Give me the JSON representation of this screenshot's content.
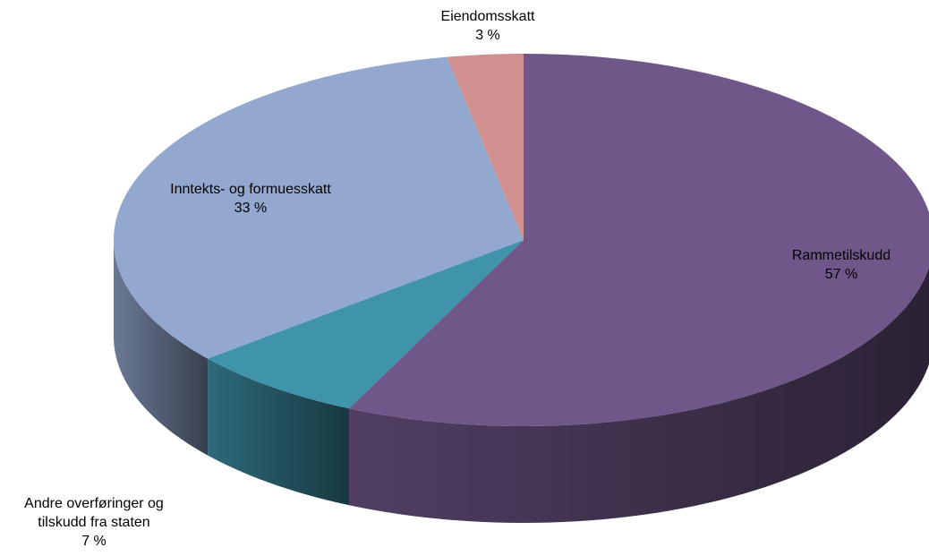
{
  "chart_data": {
    "type": "pie",
    "categories": [
      "Rammetilskudd",
      "Andre overføringer og tilskudd fra staten",
      "Inntekts- og formuesskatt",
      "Eiendomsskatt"
    ],
    "values": [
      57,
      7,
      33,
      3
    ],
    "value_labels": [
      "57 %",
      "7 %",
      "33 %",
      "3 %"
    ],
    "colors": [
      "#70578a",
      "#3f93aa",
      "#93a8cf",
      "#d09090"
    ]
  }
}
